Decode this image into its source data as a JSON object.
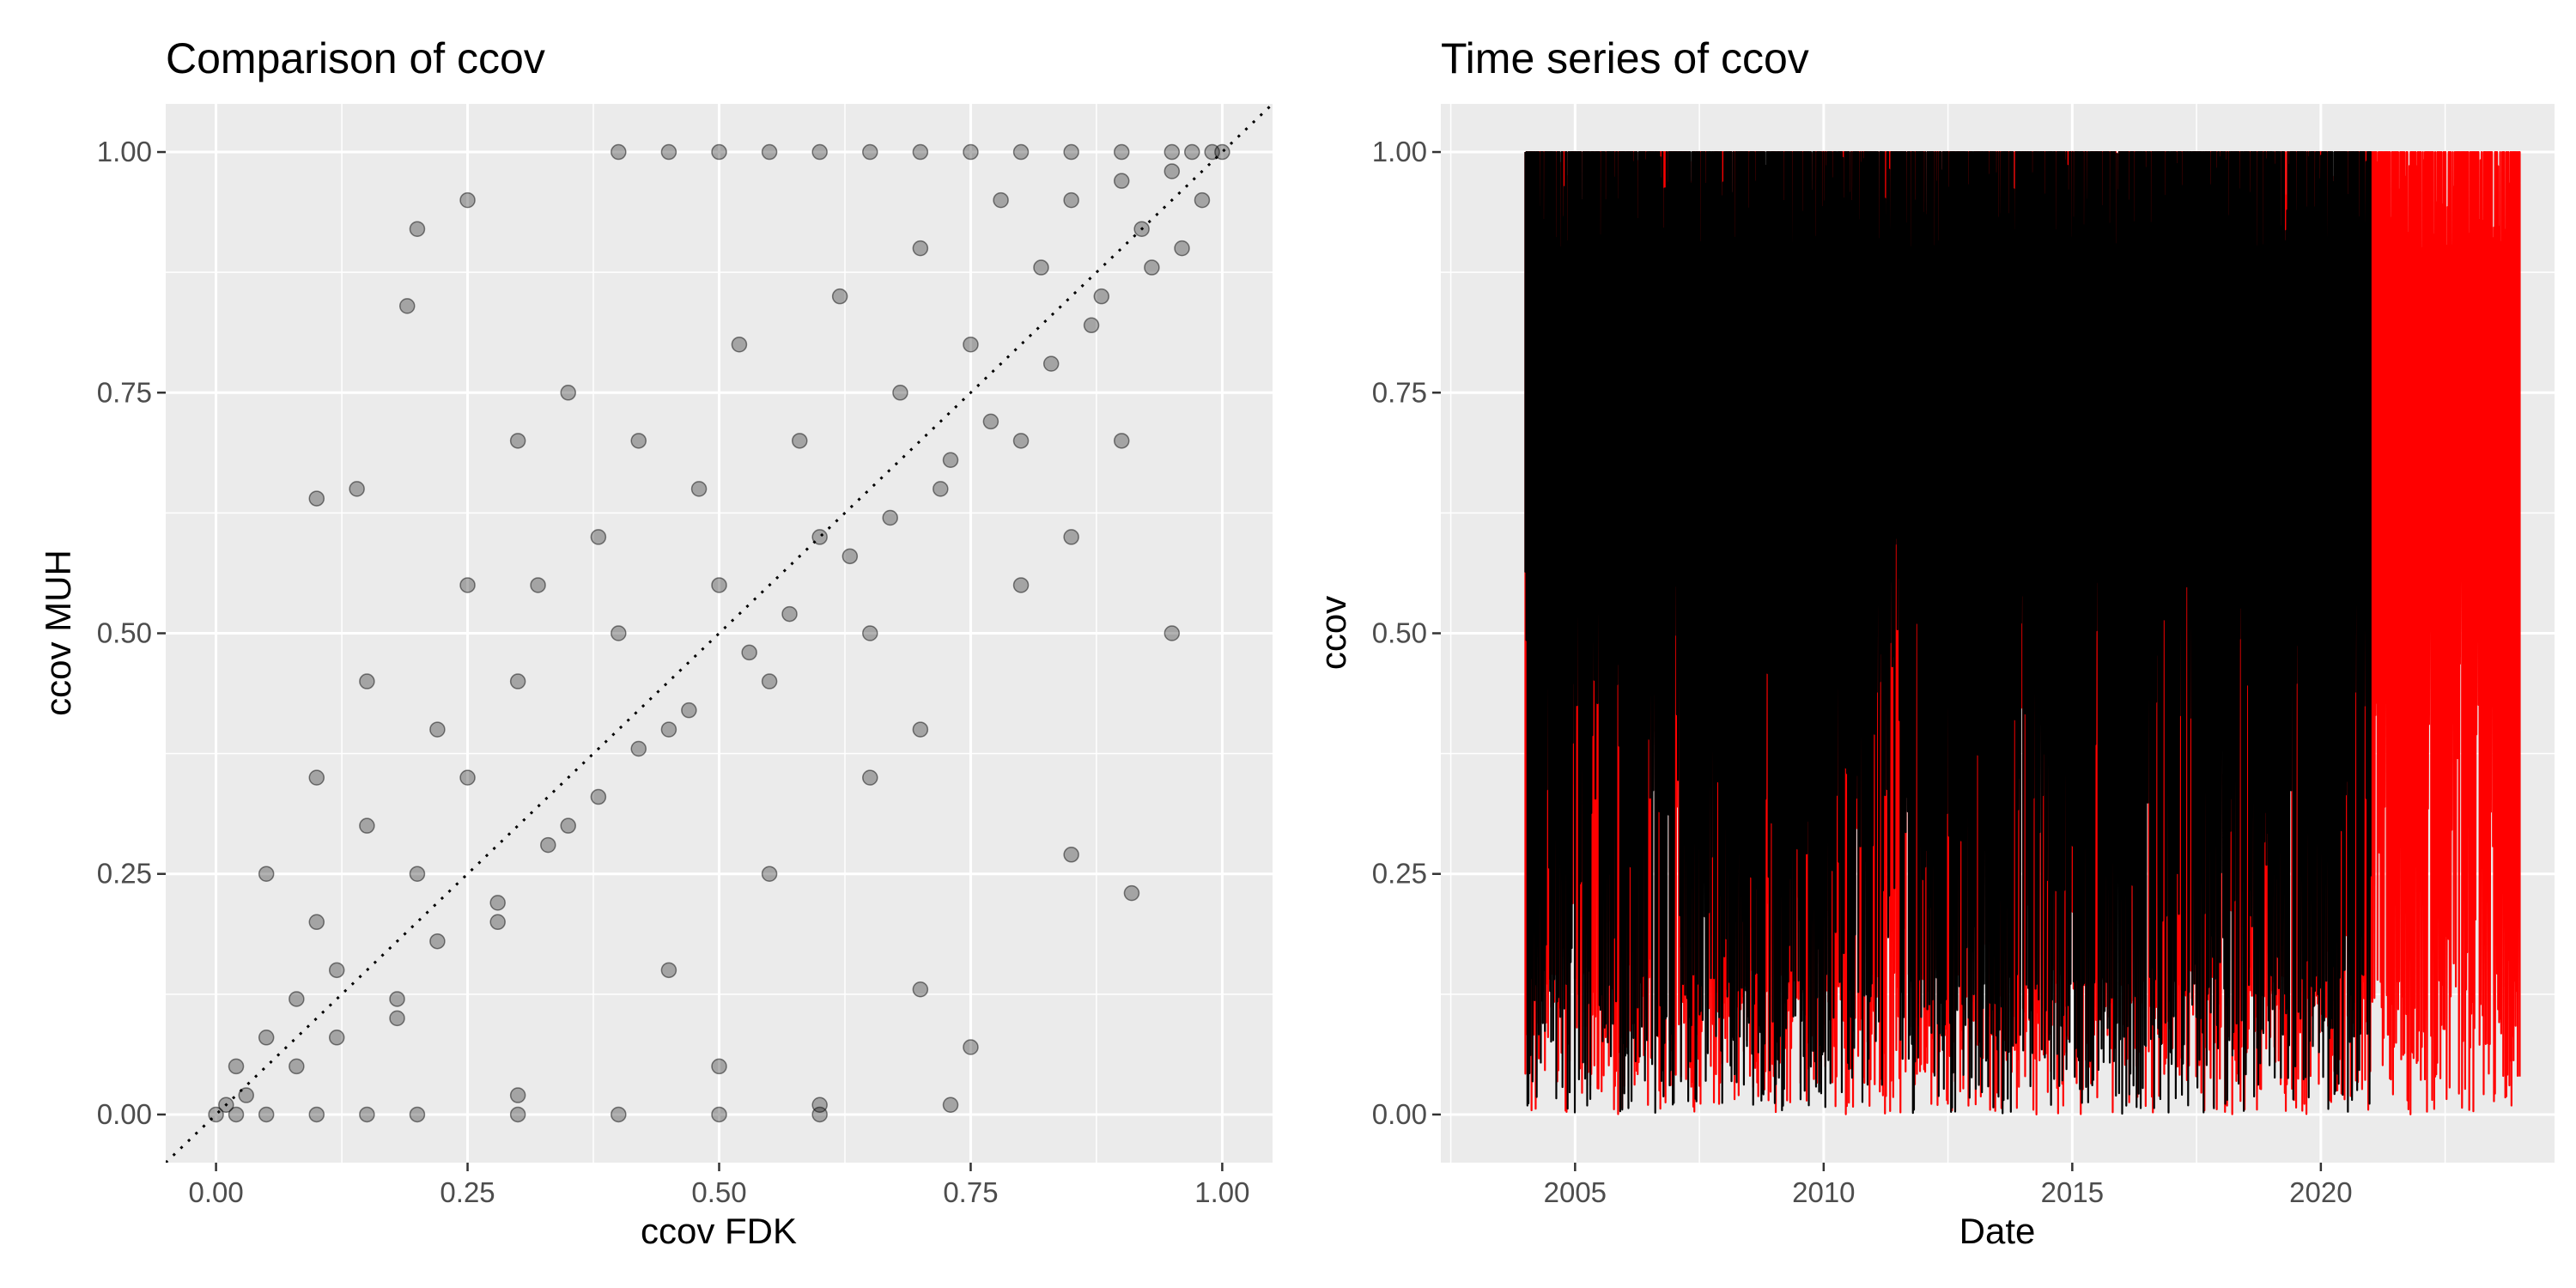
{
  "colors": {
    "panel_background": "#EBEBEB",
    "grid": "#FFFFFF",
    "scatter_points": "#000000",
    "series_fdk": "#000000",
    "series_muh": "#FF0000"
  },
  "chart_data": [
    {
      "type": "scatter",
      "title": "Comparison of ccov",
      "xlabel": "ccov FDK",
      "ylabel": "ccov MUH",
      "xlim": [
        -0.05,
        1.05
      ],
      "ylim": [
        -0.05,
        1.05
      ],
      "xticks": [
        0.0,
        0.25,
        0.5,
        0.75,
        1.0
      ],
      "xtick_labels": [
        "0.00",
        "0.25",
        "0.50",
        "0.75",
        "1.00"
      ],
      "yticks": [
        0.0,
        0.25,
        0.5,
        0.75,
        1.0
      ],
      "ytick_labels": [
        "0.00",
        "0.25",
        "0.50",
        "0.75",
        "1.00"
      ],
      "grid": true,
      "point_alpha": 0.3,
      "reference_line": {
        "style": "dotted",
        "slope": 1,
        "intercept": 0
      },
      "points": [
        [
          0.0,
          0.0
        ],
        [
          0.02,
          0.0
        ],
        [
          0.05,
          0.0
        ],
        [
          0.1,
          0.0
        ],
        [
          0.15,
          0.0
        ],
        [
          0.2,
          0.0
        ],
        [
          0.3,
          0.0
        ],
        [
          0.4,
          0.0
        ],
        [
          0.5,
          0.0
        ],
        [
          0.6,
          0.0
        ],
        [
          0.01,
          0.01
        ],
        [
          0.03,
          0.02
        ],
        [
          0.02,
          0.05
        ],
        [
          0.05,
          0.08
        ],
        [
          0.08,
          0.12
        ],
        [
          0.1,
          0.2
        ],
        [
          0.12,
          0.15
        ],
        [
          0.15,
          0.3
        ],
        [
          0.18,
          0.1
        ],
        [
          0.2,
          0.25
        ],
        [
          0.22,
          0.4
        ],
        [
          0.25,
          0.35
        ],
        [
          0.28,
          0.2
        ],
        [
          0.3,
          0.45
        ],
        [
          0.32,
          0.55
        ],
        [
          0.35,
          0.3
        ],
        [
          0.38,
          0.6
        ],
        [
          0.4,
          0.5
        ],
        [
          0.42,
          0.7
        ],
        [
          0.45,
          0.4
        ],
        [
          0.48,
          0.65
        ],
        [
          0.5,
          0.55
        ],
        [
          0.52,
          0.8
        ],
        [
          0.55,
          0.45
        ],
        [
          0.58,
          0.7
        ],
        [
          0.6,
          0.6
        ],
        [
          0.62,
          0.85
        ],
        [
          0.65,
          0.5
        ],
        [
          0.68,
          0.75
        ],
        [
          0.7,
          0.9
        ],
        [
          0.72,
          0.65
        ],
        [
          0.75,
          0.8
        ],
        [
          0.78,
          0.95
        ],
        [
          0.8,
          0.7
        ],
        [
          0.82,
          0.88
        ],
        [
          0.85,
          0.95
        ],
        [
          0.88,
          0.85
        ],
        [
          0.9,
          0.97
        ],
        [
          0.92,
          0.92
        ],
        [
          0.95,
          0.98
        ],
        [
          0.97,
          1.0
        ],
        [
          0.99,
          1.0
        ],
        [
          1.0,
          1.0
        ],
        [
          0.95,
          1.0
        ],
        [
          0.9,
          1.0
        ],
        [
          0.85,
          1.0
        ],
        [
          0.8,
          1.0
        ],
        [
          0.75,
          1.0
        ],
        [
          0.7,
          1.0
        ],
        [
          0.65,
          1.0
        ],
        [
          0.6,
          1.0
        ],
        [
          0.55,
          1.0
        ],
        [
          0.5,
          1.0
        ],
        [
          0.45,
          1.0
        ],
        [
          0.4,
          1.0
        ],
        [
          0.19,
          0.84
        ],
        [
          0.2,
          0.92
        ],
        [
          0.25,
          0.95
        ],
        [
          0.1,
          0.64
        ],
        [
          0.14,
          0.65
        ],
        [
          0.91,
          0.23
        ],
        [
          0.73,
          0.01
        ],
        [
          0.75,
          0.07
        ],
        [
          0.7,
          0.13
        ],
        [
          0.85,
          0.27
        ],
        [
          0.95,
          0.5
        ],
        [
          0.6,
          0.01
        ],
        [
          0.5,
          0.05
        ],
        [
          0.3,
          0.02
        ],
        [
          0.45,
          0.15
        ],
        [
          0.55,
          0.25
        ],
        [
          0.65,
          0.35
        ],
        [
          0.7,
          0.4
        ],
        [
          0.8,
          0.55
        ],
        [
          0.85,
          0.6
        ],
        [
          0.9,
          0.7
        ],
        [
          0.35,
          0.75
        ],
        [
          0.3,
          0.7
        ],
        [
          0.25,
          0.55
        ],
        [
          0.15,
          0.45
        ],
        [
          0.1,
          0.35
        ],
        [
          0.05,
          0.25
        ],
        [
          0.08,
          0.05
        ],
        [
          0.12,
          0.08
        ],
        [
          0.18,
          0.12
        ],
        [
          0.22,
          0.18
        ],
        [
          0.28,
          0.22
        ],
        [
          0.33,
          0.28
        ],
        [
          0.38,
          0.33
        ],
        [
          0.42,
          0.38
        ],
        [
          0.47,
          0.42
        ],
        [
          0.53,
          0.48
        ],
        [
          0.57,
          0.52
        ],
        [
          0.63,
          0.58
        ],
        [
          0.67,
          0.62
        ],
        [
          0.73,
          0.68
        ],
        [
          0.77,
          0.72
        ],
        [
          0.83,
          0.78
        ],
        [
          0.87,
          0.82
        ],
        [
          0.93,
          0.88
        ],
        [
          0.96,
          0.9
        ],
        [
          0.98,
          0.95
        ]
      ]
    },
    {
      "type": "line",
      "title": "Time series of ccov",
      "xlabel": "Date",
      "ylabel": "ccov",
      "xlim": [
        2002.3,
        2024.7
      ],
      "ylim": [
        -0.05,
        1.05
      ],
      "xticks": [
        2005,
        2010,
        2015,
        2020
      ],
      "xtick_labels": [
        "2005",
        "2010",
        "2015",
        "2020"
      ],
      "yticks": [
        0.0,
        0.25,
        0.5,
        0.75,
        1.0
      ],
      "ytick_labels": [
        "0.00",
        "0.25",
        "0.50",
        "0.75",
        "1.00"
      ],
      "grid": true,
      "series": [
        {
          "color": "#FF0000",
          "x_range": [
            2004.0,
            2024.0
          ],
          "y_range": [
            0.0,
            1.0
          ]
        },
        {
          "color": "#000000",
          "x_range": [
            2004.0,
            2021.0
          ],
          "y_range": [
            0.0,
            1.0
          ]
        }
      ]
    }
  ]
}
